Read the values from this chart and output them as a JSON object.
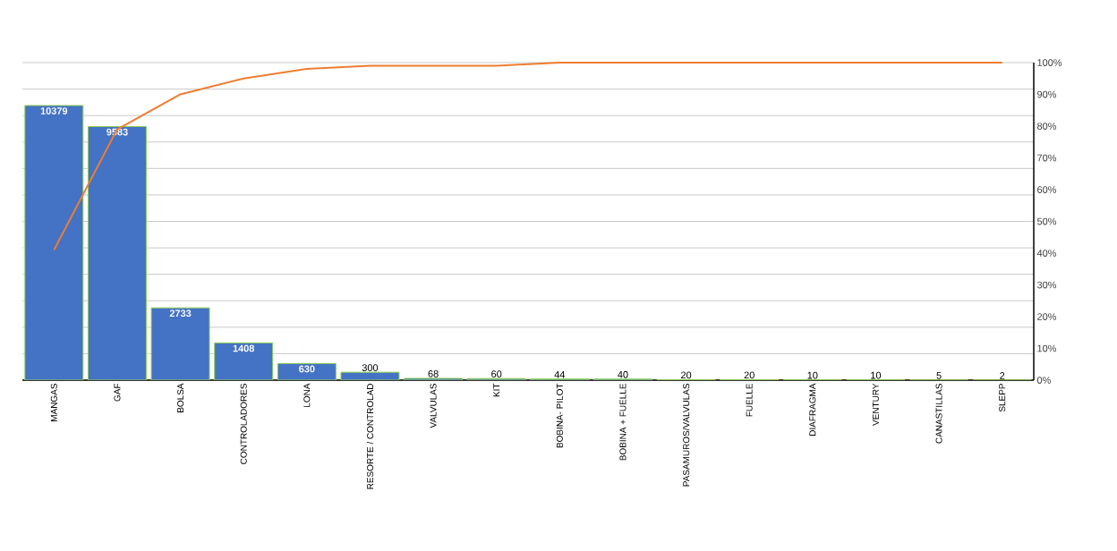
{
  "chart_data": {
    "type": "bar",
    "categories": [
      "MANGAS",
      "GAF",
      "BOLSA",
      "CONTROLADORES",
      "LONA",
      "RESORTE / CONTROLAD",
      "VALVULAS",
      "KIT",
      "BOBINA- PILOT",
      "BOBINA + FUELLE",
      "PASAMUROS/VALVULAS",
      "FUELLE",
      "DIAFRAGMA",
      "VENTURY",
      "CANASTILLAS",
      "SLEPP"
    ],
    "series": [
      {
        "color": "#4472c4",
        "data_labels": true,
        "values": [
          10379,
          9583,
          2733,
          1408,
          630,
          300,
          68,
          60,
          44,
          40,
          20,
          20,
          10,
          10,
          5,
          2
        ]
      },
      {
        "type": "line",
        "axis": "y2",
        "color": "#ed7d31",
        "values": [
          41,
          79,
          90,
          95,
          98,
          99,
          99,
          99,
          100,
          100,
          100,
          100,
          100,
          100,
          100,
          100
        ]
      }
    ],
    "ylim": [
      0,
      12000
    ],
    "y2lim": [
      0,
      100
    ],
    "y2ticks": [
      {
        "value": 0,
        "label": "0%"
      },
      {
        "value": 10,
        "label": "10%"
      },
      {
        "value": 20,
        "label": "20%"
      },
      {
        "value": 30,
        "label": "30%"
      },
      {
        "value": 40,
        "label": "40%"
      },
      {
        "value": 50,
        "label": "50%"
      },
      {
        "value": 60,
        "label": "60%"
      },
      {
        "value": 70,
        "label": "70%"
      },
      {
        "value": 80,
        "label": "80%"
      },
      {
        "value": 90,
        "label": "90%"
      },
      {
        "value": 100,
        "label": "100%"
      }
    ],
    "grid": "y"
  }
}
